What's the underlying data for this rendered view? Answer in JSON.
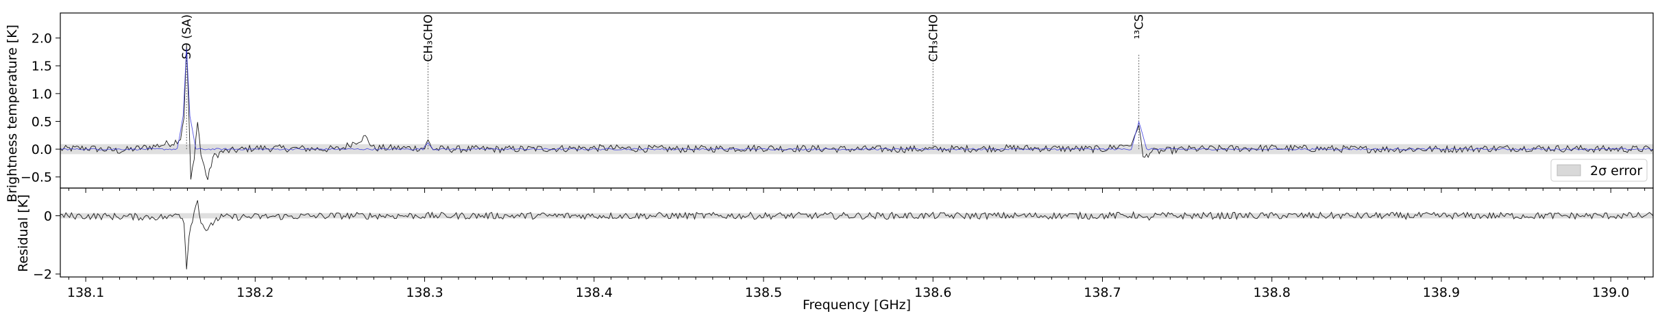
{
  "chart_data": [
    {
      "type": "line",
      "panel": "spectrum",
      "ylabel": "Brightness temperature [K]",
      "xlabel": "",
      "xlim": [
        138.085,
        139.025
      ],
      "ylim": [
        -0.7,
        2.45
      ],
      "yticks": [
        "−0.5",
        "0.0",
        "0.5",
        "1.0",
        "1.5",
        "2.0"
      ],
      "yticks_values": [
        -0.5,
        0.0,
        0.5,
        1.0,
        1.5,
        2.0
      ],
      "error_band": 0.09,
      "series": [
        {
          "name": "",
          "color": "#000000",
          "points": [
            [
              138.085,
              0.0
            ],
            [
              138.1,
              0.02
            ],
            [
              138.12,
              -0.03
            ],
            [
              138.14,
              0.05
            ],
            [
              138.152,
              0.12
            ],
            [
              138.156,
              0.2
            ],
            [
              138.158,
              0.6
            ],
            [
              138.1595,
              1.85
            ],
            [
              138.161,
              0.5
            ],
            [
              138.162,
              -0.55
            ],
            [
              138.164,
              -0.2
            ],
            [
              138.166,
              0.55
            ],
            [
              138.168,
              -0.1
            ],
            [
              138.172,
              -0.55
            ],
            [
              138.175,
              -0.15
            ],
            [
              138.18,
              -0.05
            ],
            [
              138.2,
              0.02
            ],
            [
              138.25,
              0.0
            ],
            [
              138.265,
              0.22
            ],
            [
              138.27,
              0.02
            ],
            [
              138.3,
              0.02
            ],
            [
              138.302,
              0.15
            ],
            [
              138.305,
              0.0
            ],
            [
              138.35,
              0.0
            ],
            [
              138.4,
              0.02
            ],
            [
              138.45,
              0.0
            ],
            [
              138.5,
              0.02
            ],
            [
              138.55,
              0.0
            ],
            [
              138.6,
              0.0
            ],
            [
              138.65,
              0.02
            ],
            [
              138.7,
              0.0
            ],
            [
              138.718,
              0.1
            ],
            [
              138.7215,
              0.48
            ],
            [
              138.724,
              -0.18
            ],
            [
              138.728,
              -0.05
            ],
            [
              138.75,
              0.0
            ],
            [
              138.8,
              0.02
            ],
            [
              138.85,
              0.0
            ],
            [
              138.9,
              0.0
            ],
            [
              138.95,
              0.02
            ],
            [
              139.0,
              0.0
            ],
            [
              139.025,
              0.0
            ]
          ]
        },
        {
          "name": "",
          "color": "#3333dd",
          "points": [
            [
              138.085,
              0.0
            ],
            [
              138.154,
              0.0
            ],
            [
              138.1575,
              0.6
            ],
            [
              138.1595,
              1.8
            ],
            [
              138.1615,
              0.6
            ],
            [
              138.165,
              0.0
            ],
            [
              138.299,
              0.0
            ],
            [
              138.302,
              0.12
            ],
            [
              138.305,
              0.0
            ],
            [
              138.717,
              0.0
            ],
            [
              138.7215,
              0.5
            ],
            [
              138.726,
              0.0
            ],
            [
              139.025,
              0.0
            ]
          ]
        }
      ],
      "line_labels": [
        {
          "text": "SO (SA)",
          "x": 138.1595
        },
        {
          "text": "CH₃CHO",
          "x": 138.302
        },
        {
          "text": "CH₃CHO",
          "x": 138.6
        },
        {
          "text": "¹³CS",
          "x": 138.7215
        }
      ],
      "legend": {
        "label": "2σ error",
        "placement": "bottom-right"
      }
    },
    {
      "type": "line",
      "panel": "residual",
      "ylabel": "Residual [K]",
      "xlabel": "Frequency [GHz]",
      "xlim": [
        138.085,
        139.025
      ],
      "ylim": [
        -2.1,
        0.95
      ],
      "yticks": [
        "−2",
        "0"
      ],
      "yticks_values": [
        -2,
        0
      ],
      "error_band": 0.09,
      "xticks": [
        "138.1",
        "138.2",
        "138.3",
        "138.4",
        "138.5",
        "138.6",
        "138.7",
        "138.8",
        "138.9",
        "139.0"
      ],
      "xticks_values": [
        138.1,
        138.2,
        138.3,
        138.4,
        138.5,
        138.6,
        138.7,
        138.8,
        138.9,
        139.0
      ],
      "series": [
        {
          "name": "",
          "color": "#000000",
          "points": [
            [
              138.085,
              0.0
            ],
            [
              138.15,
              -0.05
            ],
            [
              138.155,
              0.12
            ],
            [
              138.158,
              -0.2
            ],
            [
              138.1595,
              -1.8
            ],
            [
              138.161,
              -0.6
            ],
            [
              138.163,
              -0.1
            ],
            [
              138.166,
              0.55
            ],
            [
              138.168,
              -0.2
            ],
            [
              138.172,
              -0.55
            ],
            [
              138.176,
              -0.15
            ],
            [
              138.18,
              -0.05
            ],
            [
              138.25,
              0.0
            ],
            [
              138.3,
              0.0
            ],
            [
              138.4,
              0.0
            ],
            [
              138.5,
              0.0
            ],
            [
              138.6,
              0.0
            ],
            [
              138.7,
              0.0
            ],
            [
              138.7215,
              0.02
            ],
            [
              138.724,
              -0.15
            ],
            [
              138.73,
              0.0
            ],
            [
              138.8,
              0.0
            ],
            [
              138.9,
              0.0
            ],
            [
              139.025,
              0.0
            ]
          ]
        }
      ]
    }
  ]
}
